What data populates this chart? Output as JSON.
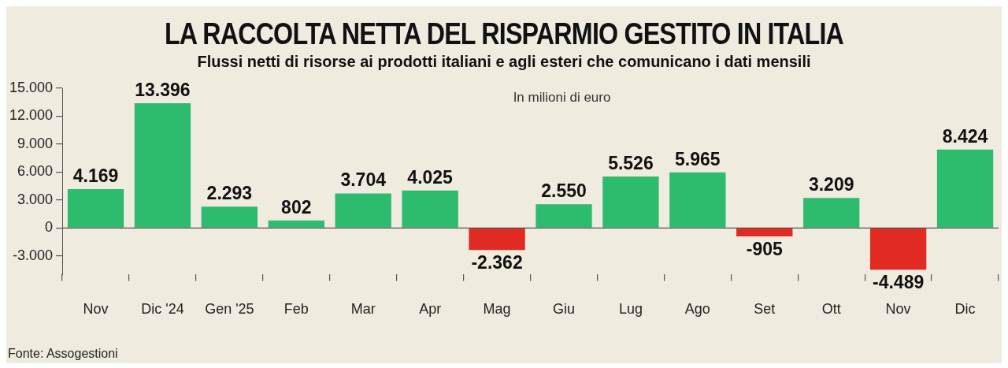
{
  "chart_data": {
    "type": "bar",
    "title": "LA RACCOLTA NETTA DEL RISPARMIO GESTITO IN ITALIA",
    "subtitle": "Flussi netti di risorse ai prodotti italiani e agli esteri che comunicano i dati mensili",
    "categories": [
      "Nov",
      "Dic '24",
      "Gen '25",
      "Feb",
      "Mar",
      "Apr",
      "Mag",
      "Giu",
      "Lug",
      "Ago",
      "Set",
      "Ott",
      "Nov",
      "Dic"
    ],
    "values": [
      4169,
      13396,
      2293,
      802,
      3704,
      4025,
      -2362,
      2550,
      5526,
      5965,
      -905,
      3209,
      -4489,
      8424
    ],
    "value_labels": [
      "4.169",
      "13.396",
      "2.293",
      "802",
      "3.704",
      "4.025",
      "-2.362",
      "2.550",
      "5.526",
      "5.965",
      "-905",
      "3.209",
      "-4.489",
      "8.424"
    ],
    "colors": [
      "#2dbb6e",
      "#2dbb6e",
      "#2dbb6e",
      "#2dbb6e",
      "#2dbb6e",
      "#2dbb6e",
      "#e12a22",
      "#2dbb6e",
      "#2dbb6e",
      "#2dbb6e",
      "#e12a22",
      "#2dbb6e",
      "#e12a22",
      "#2dbb6e"
    ],
    "ylim": [
      -5000,
      15000
    ],
    "yticks": [
      {
        "value": -3000,
        "label": "-3.000"
      },
      0,
      {
        "value": 3000,
        "label": "3.000"
      },
      {
        "value": 6000,
        "label": "6.000"
      },
      {
        "value": 9000,
        "label": "9.000"
      },
      {
        "value": 12000,
        "label": "12.000"
      },
      {
        "value": 15000,
        "label": "15.000"
      }
    ],
    "grid": false,
    "legend": false,
    "ref_lines": [
      {
        "axis": "y",
        "value": 0,
        "color": "#555555"
      }
    ],
    "annotations": [
      "In milioni di euro",
      "Fonte: Assogestioni"
    ]
  }
}
